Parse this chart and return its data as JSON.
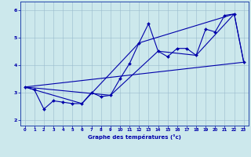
{
  "xlabel": "Graphe des températures (°c)",
  "xlim": [
    -0.5,
    23.5
  ],
  "ylim": [
    1.8,
    6.3
  ],
  "xticks": [
    0,
    1,
    2,
    3,
    4,
    5,
    6,
    7,
    8,
    9,
    10,
    11,
    12,
    13,
    14,
    15,
    16,
    17,
    18,
    19,
    20,
    21,
    22,
    23
  ],
  "yticks": [
    2,
    3,
    4,
    5,
    6
  ],
  "bg_color": "#cce8ec",
  "line_color": "#0000aa",
  "grid_color": "#99bbcc",
  "series": [
    {
      "x": [
        0,
        1,
        2,
        3,
        4,
        5,
        6,
        7,
        8,
        9,
        10,
        11,
        12,
        13,
        14,
        15,
        16,
        17,
        18,
        19,
        20,
        21,
        22,
        23
      ],
      "y": [
        3.2,
        3.1,
        2.4,
        2.7,
        2.65,
        2.6,
        2.6,
        3.0,
        2.85,
        2.9,
        3.5,
        4.05,
        4.8,
        5.5,
        4.5,
        4.3,
        4.6,
        4.6,
        4.35,
        5.3,
        5.2,
        5.8,
        5.85,
        4.1
      ],
      "marker": true
    },
    {
      "x": [
        0,
        6,
        12,
        22
      ],
      "y": [
        3.2,
        2.6,
        4.8,
        5.85
      ],
      "marker": false
    },
    {
      "x": [
        0,
        23
      ],
      "y": [
        3.2,
        4.1
      ],
      "marker": false
    },
    {
      "x": [
        0,
        9,
        14,
        18,
        22,
        23
      ],
      "y": [
        3.2,
        2.9,
        4.5,
        4.35,
        5.85,
        4.1
      ],
      "marker": false
    }
  ]
}
